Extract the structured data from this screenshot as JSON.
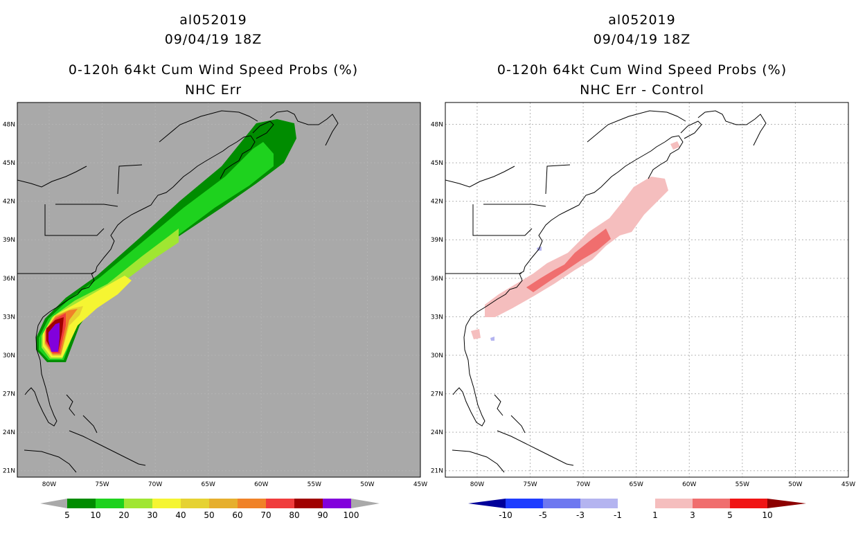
{
  "panels": [
    {
      "storm_id": "al052019",
      "datetime": "09/04/19 18Z",
      "product": "0-120h 64kt Cum Wind Speed Probs (%)",
      "scenario": "NHC Err",
      "colorbar": {
        "labels": [
          "5",
          "10",
          "20",
          "30",
          "40",
          "50",
          "60",
          "70",
          "80",
          "90",
          "100"
        ],
        "colors": [
          "#008c00",
          "#1ed21e",
          "#a0e632",
          "#f5f532",
          "#e6d232",
          "#e6af2d",
          "#f08228",
          "#f03c3c",
          "#a00000",
          "#8200dc"
        ]
      }
    },
    {
      "storm_id": "al052019",
      "datetime": "09/04/19 18Z",
      "product": "0-120h 64kt Cum Wind Speed Probs (%)",
      "scenario": "NHC Err - Control",
      "colorbar": {
        "labels": [
          "-10",
          "-5",
          "-3",
          "-1",
          "1",
          "3",
          "5",
          "10"
        ],
        "colors": [
          "#1e3cff",
          "#6e78f0",
          "#b4b4f0",
          "#ffffff",
          "#f5bebe",
          "#f06e6e",
          "#f01414"
        ],
        "under_color": "#00009a",
        "over_color": "#8c0000"
      }
    }
  ],
  "axes": {
    "lon_labels": [
      "80W",
      "75W",
      "70W",
      "65W",
      "60W",
      "55W",
      "50W",
      "45W"
    ],
    "lat_labels": [
      "21N",
      "24N",
      "27N",
      "30N",
      "33N",
      "36N",
      "39N",
      "42N",
      "45N",
      "48N"
    ],
    "lon_values": [
      -80,
      -75,
      -70,
      -65,
      -60,
      -55,
      -50,
      -45
    ],
    "lat_values": [
      21,
      24,
      27,
      30,
      33,
      36,
      39,
      42,
      45,
      48
    ],
    "lon_range": [
      -83,
      -45
    ],
    "lat_range": [
      20.5,
      49.7
    ]
  },
  "map_colors": {
    "left_background": "#a9a9a9",
    "right_background": "#ffffff",
    "coast": "#000000",
    "grid": "#b4b4b4"
  }
}
